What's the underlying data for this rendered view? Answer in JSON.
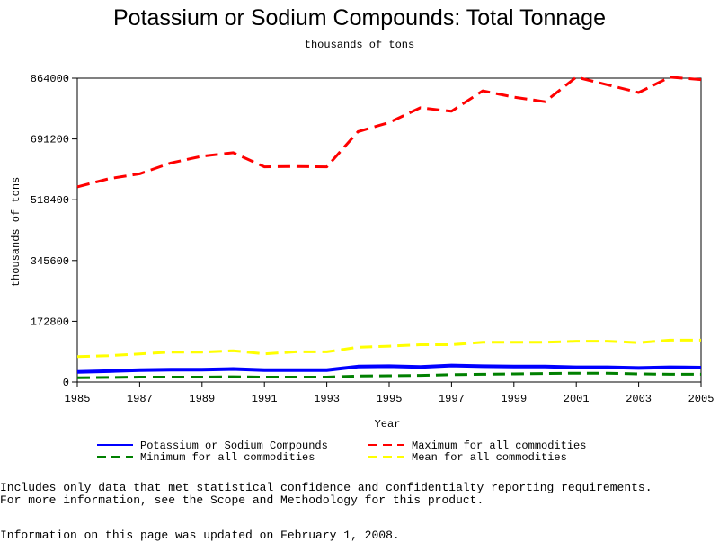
{
  "chart_data": {
    "type": "line",
    "title": "Potassium or Sodium Compounds: Total Tonnage",
    "subtitle": "thousands of tons",
    "xlabel": "Year",
    "ylabel": "thousands of tons",
    "xlim": [
      1985,
      2005
    ],
    "ylim": [
      0,
      864000
    ],
    "xticks": [
      "1985",
      "1987",
      "1989",
      "1991",
      "1993",
      "1995",
      "1997",
      "1999",
      "2001",
      "2003",
      "2005"
    ],
    "yticks": [
      "0",
      "172800",
      "345600",
      "518400",
      "691200",
      "864000"
    ],
    "x": [
      1985,
      1986,
      1987,
      1988,
      1989,
      1990,
      1991,
      1992,
      1993,
      1994,
      1995,
      1996,
      1997,
      1998,
      1999,
      2000,
      2001,
      2002,
      2003,
      2004,
      2005
    ],
    "series": [
      {
        "name": "Potassium or Sodium Compounds",
        "color": "#0000ff",
        "dash": "solid",
        "values": [
          29000,
          31000,
          34000,
          35000,
          35000,
          37000,
          34000,
          34000,
          34000,
          44000,
          45000,
          43000,
          47000,
          45000,
          44000,
          44000,
          42000,
          42000,
          40000,
          42000,
          41000
        ]
      },
      {
        "name": "Maximum for all commodities",
        "color": "#ff0000",
        "dash": "dashed",
        "values": [
          555000,
          578000,
          592000,
          623000,
          642000,
          652000,
          612000,
          613000,
          612000,
          712000,
          738000,
          780000,
          770000,
          828000,
          810000,
          797000,
          867000,
          845000,
          823000,
          867000,
          860000
        ]
      },
      {
        "name": "Minimum for all commodities",
        "color": "#008000",
        "dash": "dashed",
        "values": [
          12000,
          13000,
          14000,
          14000,
          14000,
          15000,
          14000,
          14000,
          14000,
          17000,
          18000,
          19000,
          21000,
          22000,
          23000,
          24000,
          25000,
          25000,
          23000,
          22000,
          22000
        ]
      },
      {
        "name": "Mean for all commodities",
        "color": "#ffff00",
        "dash": "dashed",
        "values": [
          72000,
          75000,
          80000,
          85000,
          85000,
          89000,
          80000,
          86000,
          86000,
          99000,
          102000,
          106000,
          106000,
          113000,
          113000,
          113000,
          116000,
          116000,
          112000,
          119000,
          119000
        ]
      }
    ],
    "legend_position": "bottom"
  },
  "notes": [
    "Includes only data that met statistical confidence and confidentialty reporting requirements.",
    "For more information, see the Scope and Methodology for this product."
  ],
  "updated": "Information on this page was updated on February 1, 2008."
}
